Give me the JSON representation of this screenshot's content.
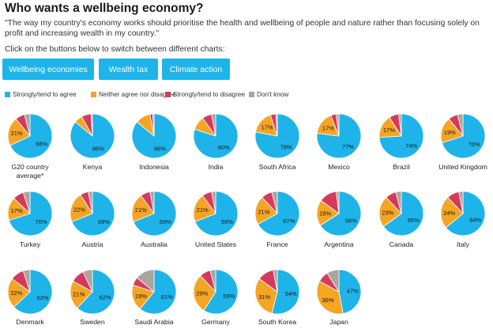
{
  "header": {
    "title": "Who wants a wellbeing economy?",
    "subtitle": "\"The way my country's economy works should prioritise the health and wellbeing of people and nature rather than focusing solely on profit and increasing wealth in my country.\"",
    "instruction": "Click on the buttons below to switch between different charts:"
  },
  "buttons": [
    {
      "label": "Wellbeing economies"
    },
    {
      "label": "Wealth tax"
    },
    {
      "label": "Climate action"
    }
  ],
  "legend": [
    {
      "label": "Strongly/tend to agree",
      "color": "#1eb4ea"
    },
    {
      "label": "Neither agree nor disagree",
      "color": "#f5a524"
    },
    {
      "label": "Strongly/tend to disagree",
      "color": "#d53a5d"
    },
    {
      "label": "Don't know",
      "color": "#aaa59f"
    }
  ],
  "chart_data": {
    "type": "pie",
    "series_names": [
      "Strongly/tend to agree",
      "Neither agree nor disagree",
      "Strongly/tend to disagree",
      "Don't know"
    ],
    "colors": [
      "#1eb4ea",
      "#f5a524",
      "#d53a5d",
      "#aaa59f"
    ],
    "pies": [
      {
        "country": "G20 country average*",
        "values": [
          68,
          21,
          7,
          4
        ],
        "labels": [
          "68%",
          "21%",
          "",
          ""
        ]
      },
      {
        "country": "Kenya",
        "values": [
          86,
          6,
          7,
          1
        ],
        "labels": [
          "86%",
          "",
          "",
          ""
        ]
      },
      {
        "country": "Indonesia",
        "values": [
          86,
          11,
          2,
          1
        ],
        "labels": [
          "86%",
          "",
          "",
          ""
        ]
      },
      {
        "country": "India",
        "values": [
          80,
          10,
          7,
          3
        ],
        "labels": [
          "80%",
          "",
          "",
          ""
        ]
      },
      {
        "country": "South Africa",
        "values": [
          78,
          17,
          4,
          1
        ],
        "labels": [
          "78%",
          "17%",
          "",
          ""
        ]
      },
      {
        "country": "Mexico",
        "values": [
          77,
          17,
          4,
          2
        ],
        "labels": [
          "77%",
          "17%",
          "",
          ""
        ]
      },
      {
        "country": "Brazil",
        "values": [
          74,
          17,
          7,
          2
        ],
        "labels": [
          "74%",
          "17%",
          "",
          ""
        ]
      },
      {
        "country": "United Kingdom",
        "values": [
          70,
          19,
          7,
          4
        ],
        "labels": [
          "70%",
          "19%",
          "",
          ""
        ]
      },
      {
        "country": "Turkey",
        "values": [
          70,
          17,
          8,
          5
        ],
        "labels": [
          "70%",
          "17%",
          "",
          ""
        ]
      },
      {
        "country": "Austria",
        "values": [
          69,
          22,
          6,
          3
        ],
        "labels": [
          "69%",
          "22%",
          "",
          ""
        ]
      },
      {
        "country": "Australia",
        "values": [
          69,
          21,
          7,
          3
        ],
        "labels": [
          "69%",
          "21%",
          "",
          ""
        ]
      },
      {
        "country": "United States",
        "values": [
          69,
          21,
          7,
          3
        ],
        "labels": [
          "69%",
          "21%",
          "",
          ""
        ]
      },
      {
        "country": "France",
        "values": [
          67,
          21,
          8,
          4
        ],
        "labels": [
          "67%",
          "21%",
          "",
          ""
        ]
      },
      {
        "country": "Argentina",
        "values": [
          66,
          19,
          13,
          2
        ],
        "labels": [
          "66%",
          "19%",
          "",
          ""
        ]
      },
      {
        "country": "Canada",
        "values": [
          65,
          23,
          8,
          4
        ],
        "labels": [
          "65%",
          "23%",
          "",
          ""
        ]
      },
      {
        "country": "Italy",
        "values": [
          64,
          24,
          9,
          3
        ],
        "labels": [
          "64%",
          "24%",
          "",
          ""
        ]
      },
      {
        "country": "Denmark",
        "values": [
          63,
          22,
          10,
          5
        ],
        "labels": [
          "63%",
          "22%",
          "",
          ""
        ]
      },
      {
        "country": "Sweden",
        "values": [
          62,
          21,
          10,
          7
        ],
        "labels": [
          "62%",
          "21%",
          "",
          ""
        ]
      },
      {
        "country": "Saudi Arabia",
        "values": [
          61,
          19,
          6,
          14
        ],
        "labels": [
          "61%",
          "19%",
          "",
          ""
        ]
      },
      {
        "country": "Germany",
        "values": [
          59,
          29,
          8,
          4
        ],
        "labels": [
          "59%",
          "29%",
          "",
          ""
        ]
      },
      {
        "country": "South Korea",
        "values": [
          54,
          31,
          12,
          3
        ],
        "labels": [
          "54%",
          "31%",
          "",
          ""
        ]
      },
      {
        "country": "Japan",
        "values": [
          47,
          36,
          8,
          9
        ],
        "labels": [
          "47%",
          "36%",
          "",
          ""
        ]
      }
    ]
  }
}
